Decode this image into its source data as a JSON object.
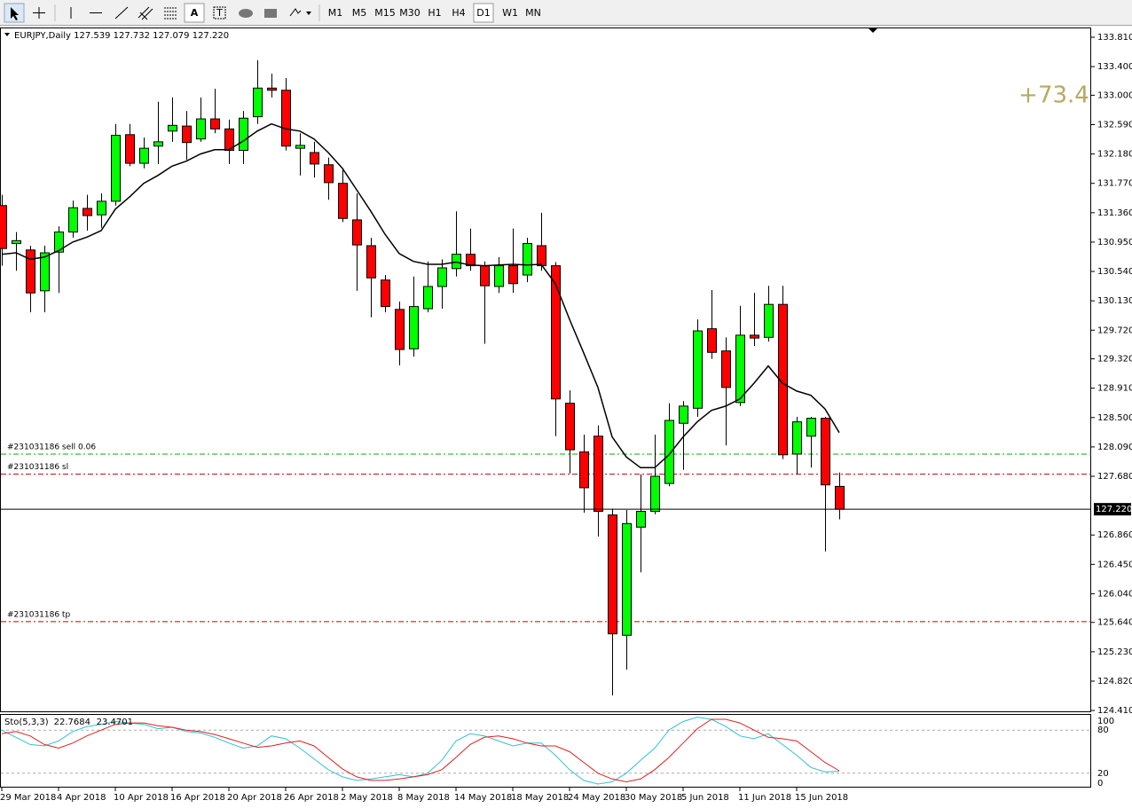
{
  "toolbar": {
    "text_button": "A",
    "periods": [
      "M1",
      "M5",
      "M15",
      "M30",
      "H1",
      "H4",
      "D1",
      "W1",
      "MN"
    ]
  },
  "chart_data": [
    {
      "type": "candlestick",
      "header": "EURJPY,Daily 127.539 127.732 127.079 127.220",
      "profit": "+73.4",
      "categories": [
        "29 Mar 2018",
        null,
        null,
        null,
        "4 Apr 2018",
        null,
        null,
        null,
        "10 Apr 2018",
        null,
        null,
        null,
        "16 Apr 2018",
        null,
        null,
        null,
        "20 Apr 2018",
        null,
        null,
        null,
        "26 Apr 2018",
        null,
        null,
        null,
        "2 May 2018",
        null,
        null,
        null,
        "8 May 2018",
        null,
        null,
        null,
        "14 May 2018",
        null,
        null,
        null,
        "18 May 2018",
        null,
        null,
        null,
        "24 May 2018",
        null,
        null,
        null,
        "30 May 2018",
        null,
        null,
        null,
        "5 Jun 2018",
        null,
        null,
        null,
        "11 Jun 2018",
        null,
        null,
        null,
        "15 Jun 2018",
        null,
        null,
        null
      ],
      "open": [
        131.46,
        130.93,
        130.84,
        130.27,
        130.81,
        131.09,
        131.42,
        131.33,
        131.52,
        132.45,
        132.05,
        132.29,
        132.5,
        132.57,
        132.39,
        132.67,
        132.53,
        132.23,
        132.7,
        133.1,
        133.07,
        132.26,
        132.2,
        132.03,
        131.77,
        131.26,
        130.9,
        130.42,
        130.01,
        129.46,
        130.02,
        130.33,
        130.58,
        130.78,
        130.62,
        130.33,
        130.62,
        130.49,
        130.9,
        130.62,
        128.7,
        128.02,
        128.24,
        127.14,
        125.46,
        126.97,
        127.19,
        127.58,
        128.42,
        128.63,
        129.74,
        129.43,
        128.71,
        129.65,
        129.62,
        130.08,
        127.99,
        128.24,
        128.49,
        127.539
      ],
      "high": [
        131.61,
        131.09,
        130.9,
        130.9,
        131.17,
        131.53,
        131.61,
        131.63,
        132.6,
        132.6,
        132.41,
        132.91,
        132.97,
        132.78,
        132.97,
        133.09,
        132.66,
        132.78,
        133.49,
        133.3,
        133.24,
        132.47,
        132.35,
        132.13,
        131.98,
        131.63,
        131.01,
        130.49,
        130.12,
        130.47,
        130.68,
        130.71,
        131.38,
        131.14,
        130.68,
        130.74,
        131.14,
        131.01,
        131.36,
        130.67,
        128.88,
        128.26,
        128.39,
        127.23,
        127.21,
        127.71,
        128.26,
        128.7,
        128.73,
        129.87,
        130.28,
        129.62,
        130.06,
        130.24,
        130.34,
        130.34,
        128.51,
        128.51,
        128.51,
        127.732
      ],
      "low": [
        130.62,
        130.55,
        129.97,
        129.97,
        130.24,
        131.01,
        131.11,
        131.15,
        131.46,
        132.01,
        131.98,
        132.04,
        132.35,
        132.1,
        132.35,
        132.47,
        132.04,
        132.04,
        132.6,
        132.97,
        132.23,
        131.88,
        131.85,
        131.54,
        131.23,
        130.27,
        129.9,
        129.97,
        129.23,
        129.35,
        129.97,
        130.02,
        130.47,
        130.55,
        129.53,
        130.24,
        130.24,
        130.39,
        130.55,
        128.24,
        127.72,
        127.17,
        126.84,
        124.62,
        124.98,
        126.34,
        127.15,
        127.54,
        127.77,
        128.51,
        129.32,
        128.11,
        128.66,
        129.5,
        129.56,
        127.92,
        127.71,
        127.8,
        126.63,
        127.079
      ],
      "close": [
        130.86,
        130.97,
        130.24,
        130.8,
        131.09,
        131.43,
        131.32,
        131.52,
        132.44,
        132.05,
        132.26,
        132.35,
        132.58,
        132.34,
        132.67,
        132.53,
        132.23,
        132.68,
        133.1,
        133.07,
        132.29,
        132.3,
        132.04,
        131.78,
        131.28,
        130.91,
        130.45,
        130.05,
        129.45,
        130.05,
        130.33,
        130.59,
        130.78,
        130.62,
        130.34,
        130.62,
        130.37,
        130.93,
        130.62,
        128.76,
        128.05,
        127.52,
        127.19,
        125.48,
        127.02,
        127.19,
        127.68,
        128.46,
        128.66,
        129.71,
        129.41,
        128.92,
        129.65,
        129.61,
        130.08,
        127.98,
        128.44,
        128.49,
        127.56,
        127.22
      ],
      "up_color": "#00ff00",
      "down_color": "#ff0000",
      "ma": {
        "color": "#000000",
        "values": [
          130.78,
          130.8,
          130.71,
          130.74,
          130.83,
          130.95,
          131.02,
          131.11,
          131.41,
          131.58,
          131.77,
          131.88,
          132.01,
          132.08,
          132.18,
          132.24,
          132.24,
          132.36,
          132.5,
          132.6,
          132.53,
          132.5,
          132.39,
          132.2,
          131.98,
          131.68,
          131.38,
          131.06,
          130.79,
          130.68,
          130.64,
          130.64,
          130.67,
          130.63,
          130.62,
          130.63,
          130.64,
          130.63,
          130.64,
          130.37,
          129.87,
          129.4,
          128.92,
          128.23,
          127.95,
          127.8,
          127.8,
          127.98,
          128.23,
          128.44,
          128.6,
          128.66,
          128.76,
          128.98,
          129.22,
          128.98,
          128.87,
          128.81,
          128.62,
          128.29
        ]
      },
      "levels": [
        {
          "label": "#231031186 sell 0.06",
          "value": 127.99,
          "color": "#00b000"
        },
        {
          "label": "#231031186 sl",
          "value": 127.71,
          "color": "#c00000"
        },
        {
          "label": "#231031186 tp",
          "value": 125.65,
          "color": "#c00000"
        }
      ],
      "last_price": {
        "value": 127.22,
        "label": "127.220"
      },
      "ylim": [
        124.386,
        133.946
      ],
      "yticks": [
        {
          "value": 133.81,
          "label": "133.810"
        },
        {
          "value": 133.4,
          "label": "133.400"
        },
        {
          "value": 133.0,
          "label": "133.000"
        },
        {
          "value": 132.59,
          "label": "132.590"
        },
        {
          "value": 132.18,
          "label": "132.180"
        },
        {
          "value": 131.77,
          "label": "131.770"
        },
        {
          "value": 131.36,
          "label": "131.360"
        },
        {
          "value": 130.95,
          "label": "130.950"
        },
        {
          "value": 130.54,
          "label": "130.540"
        },
        {
          "value": 130.13,
          "label": "130.130"
        },
        {
          "value": 129.72,
          "label": "129.720"
        },
        {
          "value": 129.32,
          "label": "129.320"
        },
        {
          "value": 128.91,
          "label": "128.910"
        },
        {
          "value": 128.5,
          "label": "128.500"
        },
        {
          "value": 128.09,
          "label": "128.090"
        },
        {
          "value": 127.68,
          "label": "127.680"
        },
        {
          "value": 126.86,
          "label": "126.860"
        },
        {
          "value": 126.45,
          "label": "126.450"
        },
        {
          "value": 126.04,
          "label": "126.040"
        },
        {
          "value": 125.64,
          "label": "125.640"
        },
        {
          "value": 125.23,
          "label": "125.230"
        },
        {
          "value": 124.82,
          "label": "124.820"
        },
        {
          "value": 124.41,
          "label": "124.410"
        }
      ],
      "grid": false
    },
    {
      "type": "line",
      "title": "Sto(5,3,3)",
      "series": [
        {
          "color": "#30c0d8",
          "values": [
            80,
            70,
            60,
            58,
            65,
            78,
            85,
            88,
            92,
            90,
            88,
            82,
            84,
            78,
            76,
            70,
            62,
            55,
            58,
            72,
            68,
            55,
            40,
            25,
            15,
            10,
            12,
            15,
            18,
            15,
            20,
            38,
            65,
            75,
            72,
            65,
            58,
            62,
            62,
            45,
            25,
            10,
            5,
            8,
            20,
            38,
            55,
            80,
            92,
            98,
            95,
            85,
            72,
            68,
            75,
            60,
            45,
            28,
            22,
            22.7684
          ]
        },
        {
          "color": "#e02020",
          "values": [
            75,
            78,
            72,
            60,
            55,
            62,
            72,
            80,
            88,
            90,
            90,
            86,
            84,
            80,
            78,
            74,
            68,
            62,
            56,
            58,
            62,
            65,
            58,
            42,
            26,
            15,
            10,
            10,
            12,
            15,
            18,
            25,
            42,
            60,
            70,
            72,
            68,
            62,
            58,
            58,
            50,
            35,
            20,
            12,
            8,
            12,
            25,
            42,
            62,
            82,
            95,
            95,
            90,
            80,
            70,
            68,
            65,
            50,
            35,
            23.4701
          ]
        }
      ],
      "ylim": [
        0,
        100
      ],
      "yticks": [
        0,
        20,
        80,
        100
      ]
    }
  ]
}
